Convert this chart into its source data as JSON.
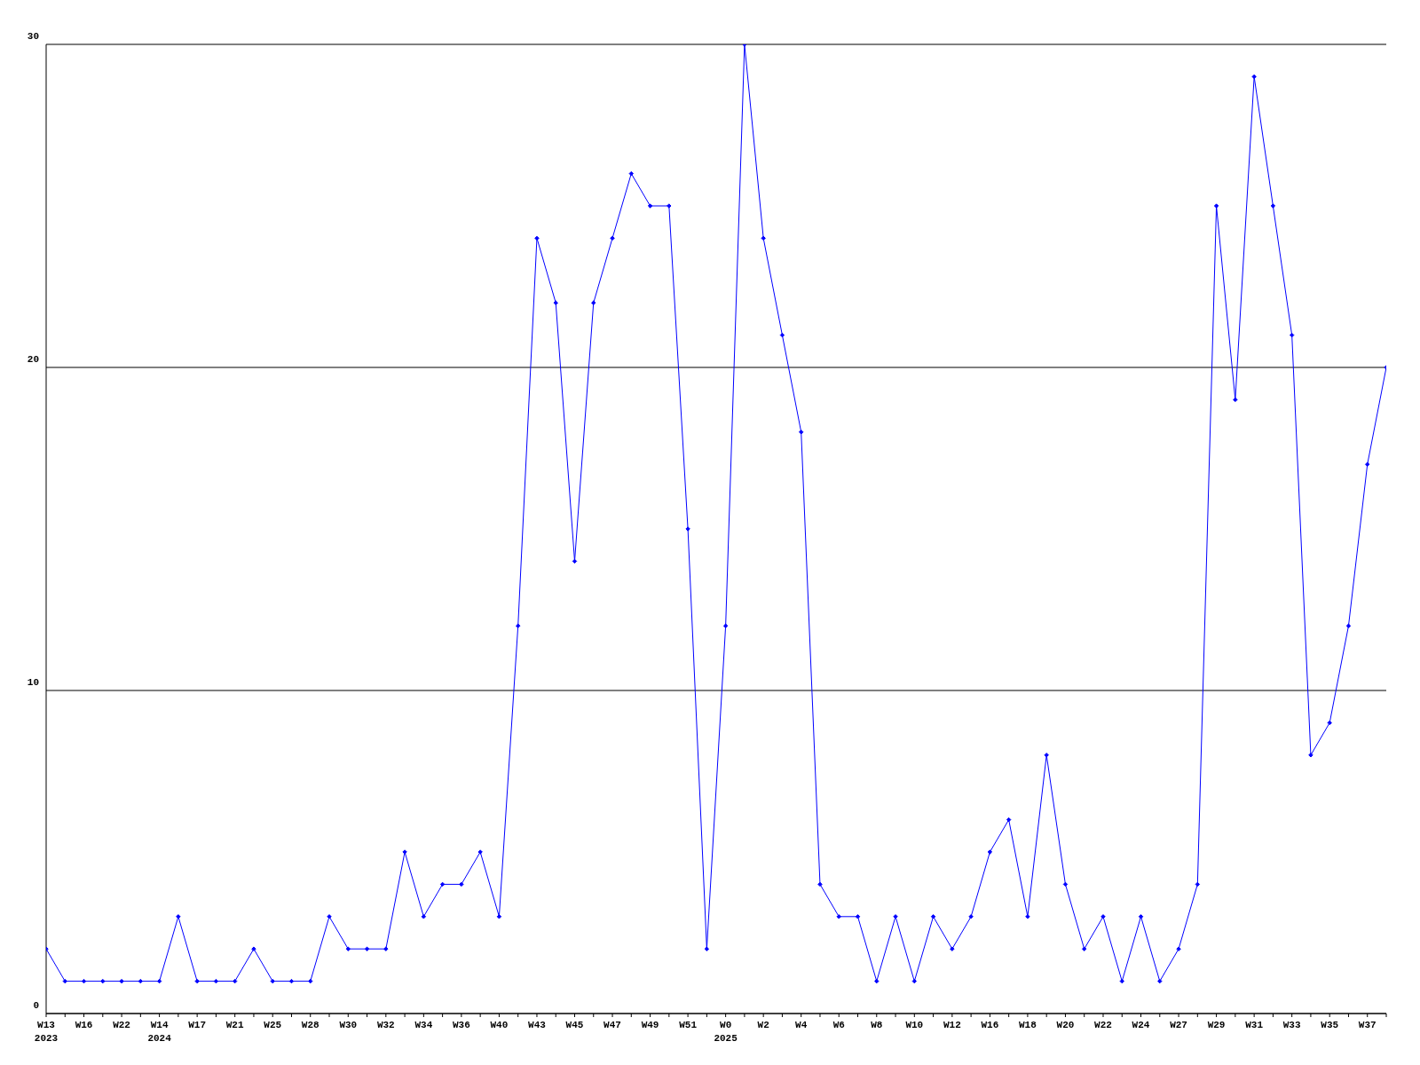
{
  "chart_data": {
    "type": "line",
    "categories": [
      "W13\n2023",
      null,
      "W16",
      null,
      "W22",
      null,
      "W14\n2024",
      null,
      "W17",
      null,
      "W21",
      null,
      "W25",
      null,
      "W28",
      null,
      "W30",
      null,
      "W32",
      null,
      "W34",
      null,
      "W36",
      null,
      "W40",
      null,
      "W43",
      null,
      "W45",
      null,
      "W47",
      null,
      "W49",
      null,
      "W51",
      null,
      "W0\n2025",
      null,
      "W2",
      null,
      "W4",
      null,
      "W6",
      null,
      "W8",
      null,
      "W10",
      null,
      "W12",
      null,
      "W16",
      null,
      "W18",
      null,
      "W20",
      null,
      "W22",
      null,
      "W24",
      null,
      "W27",
      null,
      "W29",
      null,
      "W31",
      null,
      "W33",
      null,
      "W35",
      null,
      "W37",
      null
    ],
    "series": [
      {
        "color": "#0000ff",
        "values": [
          2,
          1,
          1,
          1,
          1,
          1,
          1,
          3,
          1,
          1,
          1,
          2,
          1,
          1,
          1,
          3,
          2,
          2,
          2,
          5,
          3,
          4,
          4,
          5,
          3,
          12,
          24,
          22,
          14,
          22,
          24,
          26,
          25,
          25,
          15,
          2,
          12,
          30,
          24,
          21,
          18,
          4,
          3,
          3,
          1,
          3,
          1,
          3,
          2,
          3,
          5,
          6,
          3,
          8,
          4,
          2,
          3,
          1,
          3,
          1,
          2,
          4,
          25,
          19,
          29,
          25,
          21,
          8,
          9,
          12,
          17,
          20
        ]
      }
    ],
    "ylim": [
      0,
      30
    ],
    "yticks": [
      0,
      10,
      20,
      30
    ],
    "grid": "y",
    "marker": "diamond",
    "line_style": "solid"
  }
}
